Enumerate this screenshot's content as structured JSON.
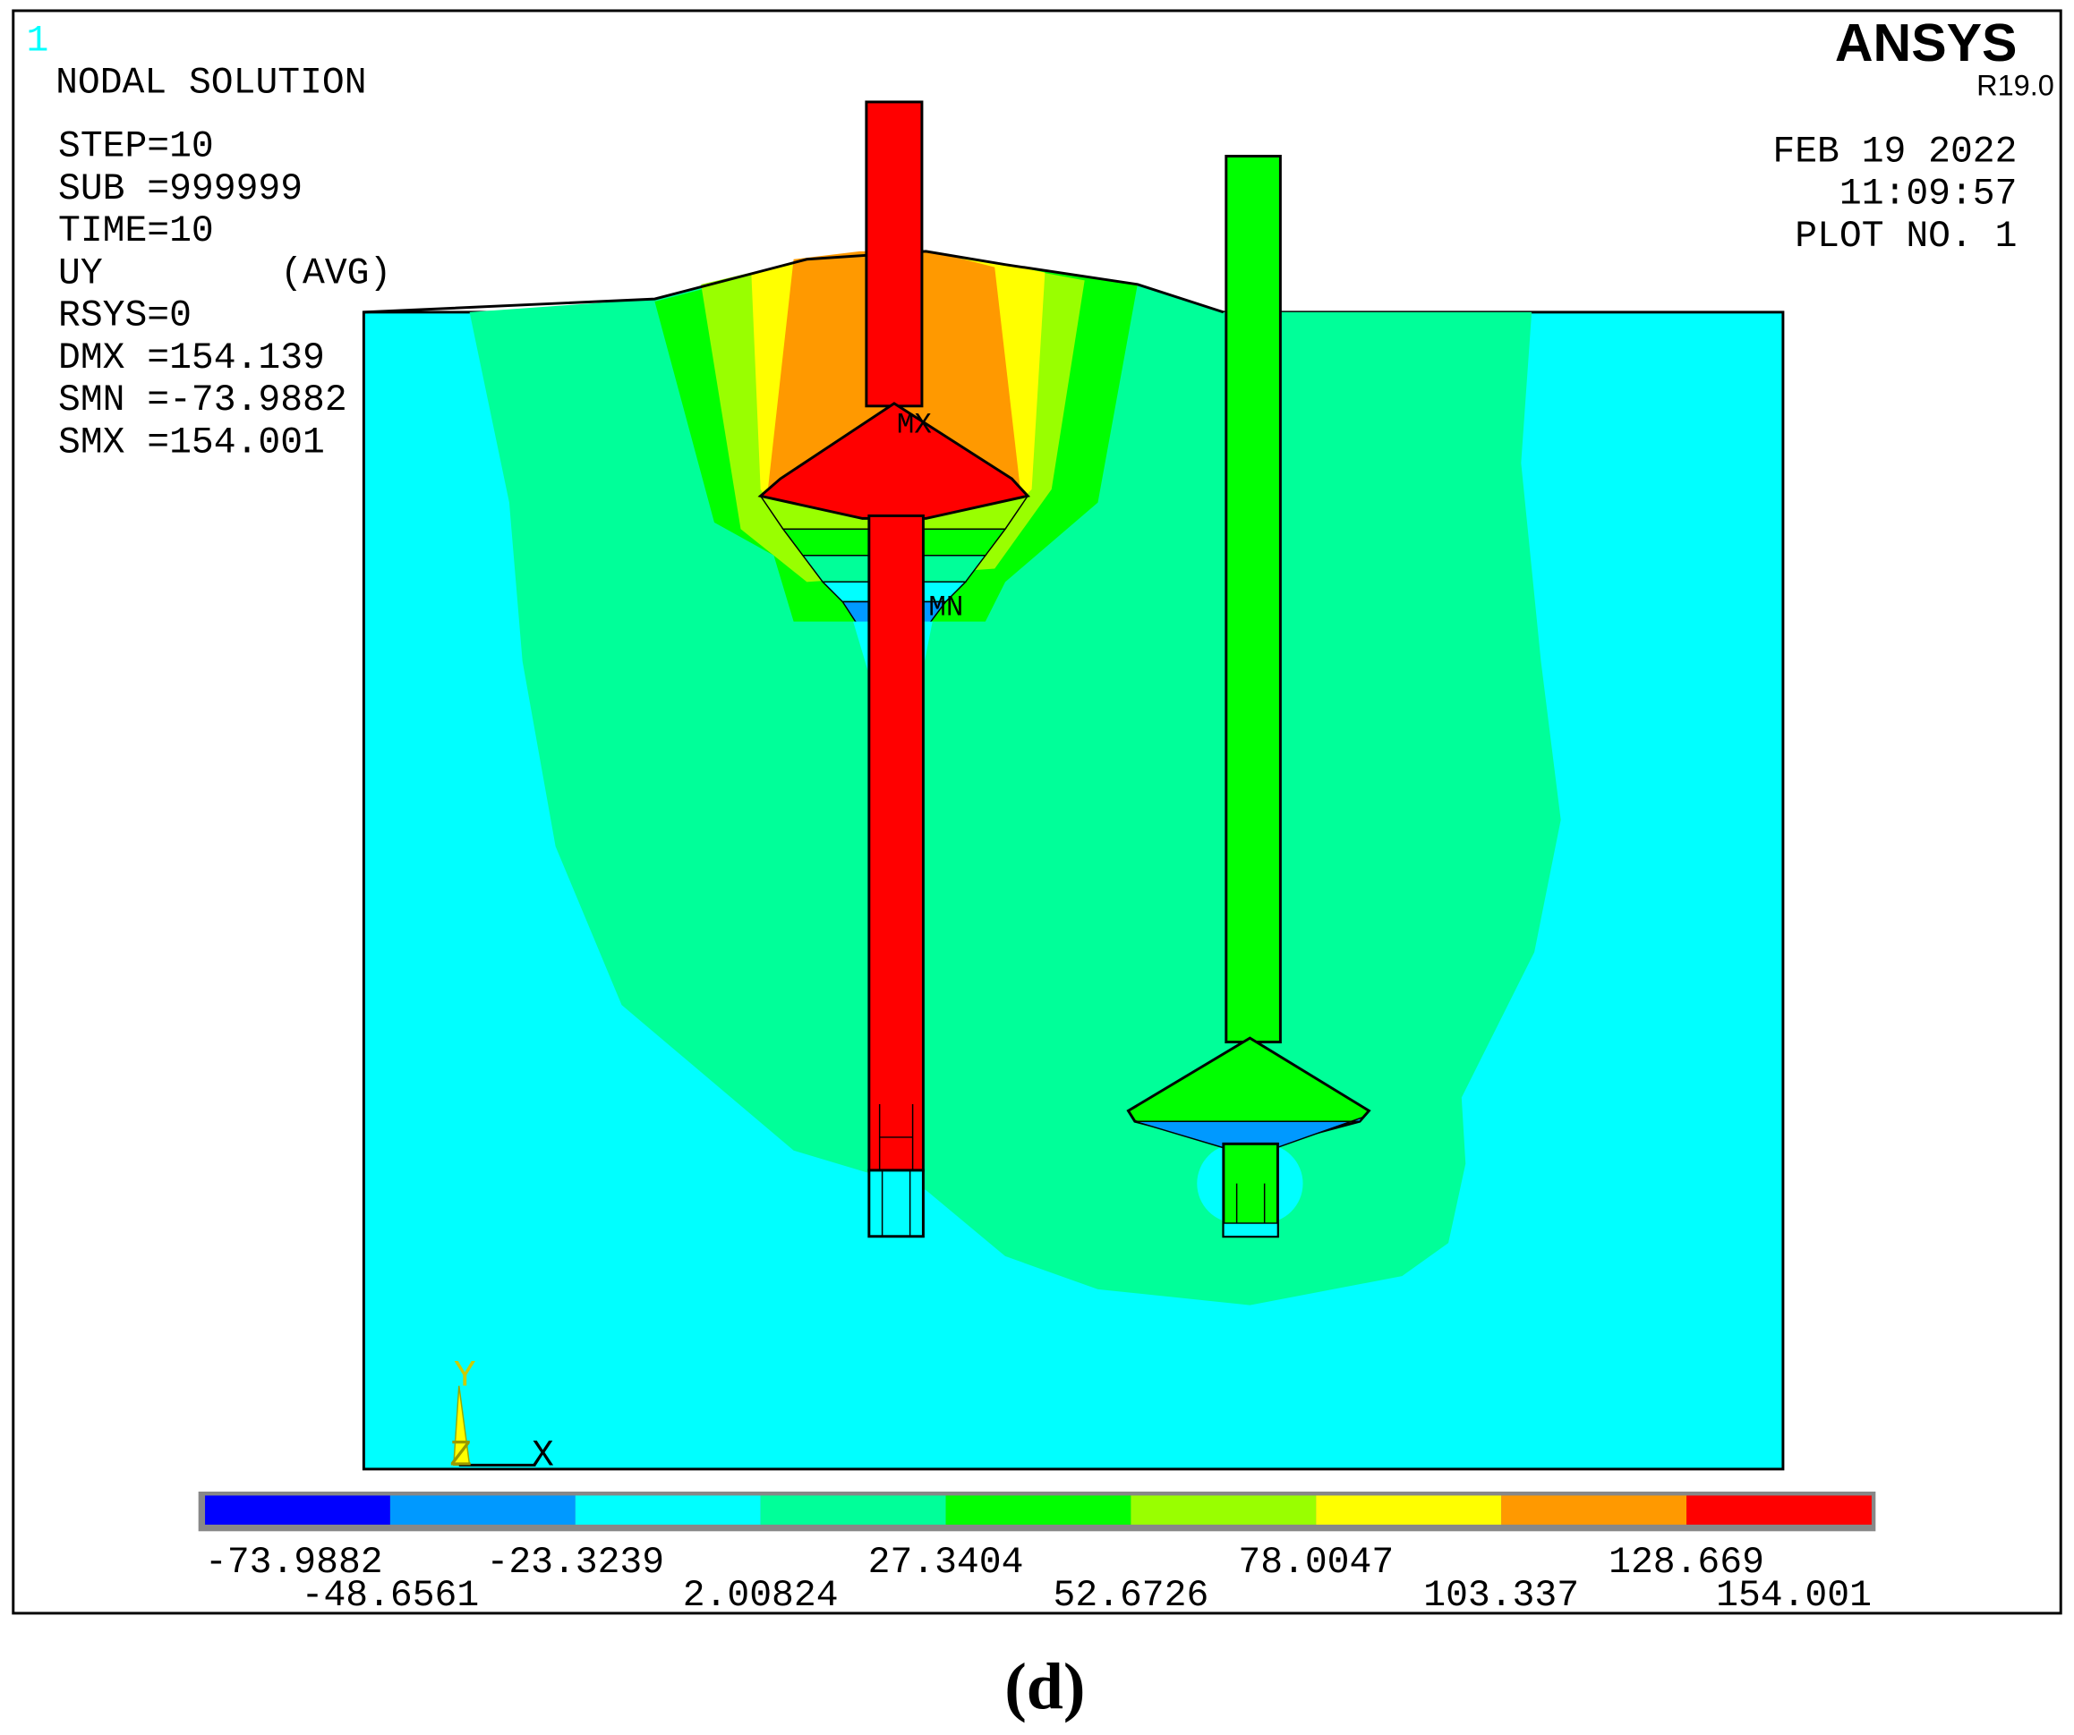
{
  "window_number": "1",
  "title": "NODAL SOLUTION",
  "info": [
    "STEP=10",
    "SUB =999999",
    "TIME=10",
    "UY        (AVG)",
    "RSYS=0",
    "DMX =154.139",
    "SMN =-73.9882",
    "SMX =154.001"
  ],
  "logo": "ANSYS",
  "version": "R19.0",
  "date": "FEB 19 2022",
  "time": "11:09:57",
  "plot_no": "PLOT NO.    1",
  "markers": {
    "max": "MX",
    "min": "MN"
  },
  "axes": {
    "y": "Y",
    "z": "Z",
    "x": "X"
  },
  "legend": {
    "colors": [
      "#0000ff",
      "#0099ff",
      "#00ffff",
      "#00ff99",
      "#00ff00",
      "#99ff00",
      "#ffff00",
      "#ff9900",
      "#ff0000"
    ],
    "labels": [
      "-73.9882",
      "-48.6561",
      "-23.3239",
      "2.00824",
      "27.3404",
      "52.6726",
      "78.0047",
      "103.337",
      "128.669",
      "154.001"
    ]
  },
  "caption": "(d)"
}
